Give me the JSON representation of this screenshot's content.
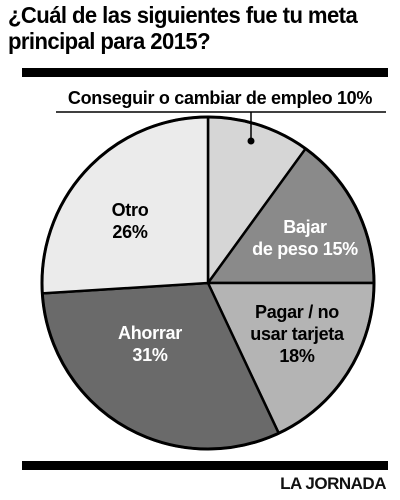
{
  "title": "¿Cuál de las siguientes fue tu meta principal para 2015?",
  "title_lines": [
    "¿Cuál de las siguientes fue tu meta",
    "principal para 2015?"
  ],
  "source": "LA JORNADA",
  "colors": {
    "Conseguir o cambiar de empleo": "#d6d6d6",
    "Bajar de peso": "#8a8a8a",
    "Pagar / no usar tarjeta": "#b4b4b4",
    "Ahorrar": "#6a6a6a",
    "Otro": "#ebebeb"
  },
  "chart_data": {
    "type": "pie",
    "title": "¿Cuál de las siguientes fue tu meta principal para 2015?",
    "slices": [
      {
        "name": "Conseguir o cambiar de empleo",
        "value": 10,
        "label_lines": [
          "Conseguir o cambiar de empleo 10%"
        ],
        "label_color": "#000000"
      },
      {
        "name": "Bajar de peso",
        "value": 15,
        "label_lines": [
          "Bajar",
          "de peso 15%"
        ],
        "label_color": "#ffffff"
      },
      {
        "name": "Pagar / no usar tarjeta",
        "value": 18,
        "label_lines": [
          "Pagar / no",
          "usar tarjeta",
          "18%"
        ],
        "label_color": "#000000"
      },
      {
        "name": "Ahorrar",
        "value": 31,
        "label_lines": [
          "Ahorrar",
          "31%"
        ],
        "label_color": "#ffffff"
      },
      {
        "name": "Otro",
        "value": 26,
        "label_lines": [
          "Otro",
          "26%"
        ],
        "label_color": "#000000"
      }
    ]
  }
}
